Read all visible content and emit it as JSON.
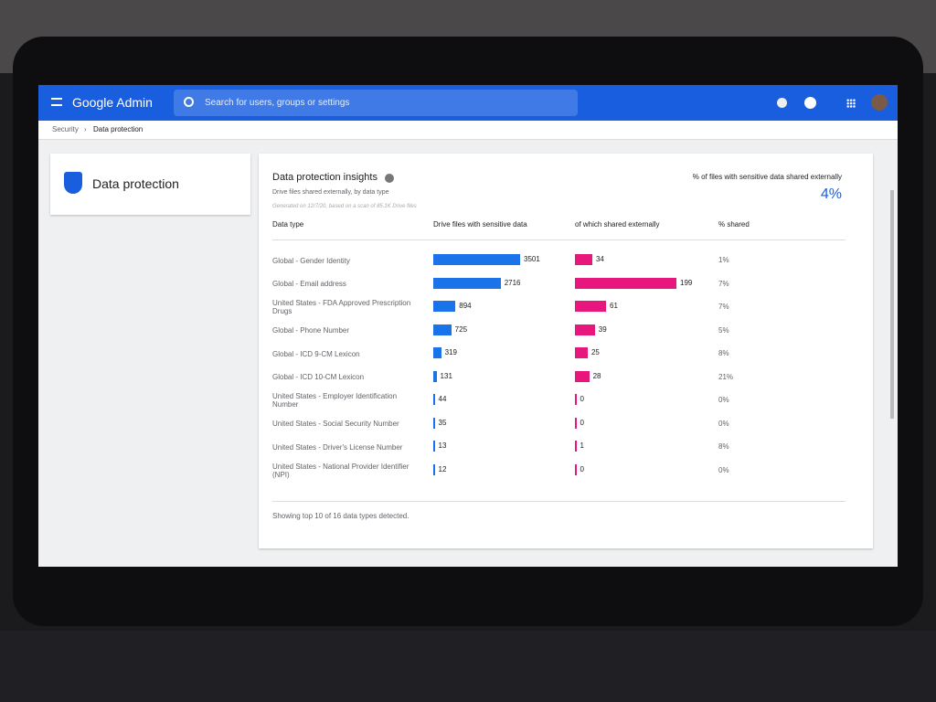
{
  "header": {
    "product": "Google Admin",
    "search_placeholder": "Search for users, groups or settings"
  },
  "breadcrumb": [
    "Security",
    "Data protection"
  ],
  "sidebar": {
    "title": "Data protection"
  },
  "card": {
    "title": "Data protection insights",
    "subtitle": "Drive files shared externally, by data type",
    "generated": "Generated on 12/7/20, based on a scan of 85.1K Drive files",
    "summary_label": "% of files with sensitive data shared externally",
    "summary_value": "4%",
    "columns": [
      "Data type",
      "Drive files with sensitive data",
      "of which shared externally",
      "% shared"
    ],
    "rows": [
      {
        "type": "Global - Gender Identity",
        "files": 3501,
        "shared": 34,
        "pct": "1%"
      },
      {
        "type": "Global - Email address",
        "files": 2716,
        "shared": 199,
        "pct": "7%"
      },
      {
        "type": "United States - FDA Approved Prescription Drugs",
        "files": 894,
        "shared": 61,
        "pct": "7%"
      },
      {
        "type": "Global - Phone Number",
        "files": 725,
        "shared": 39,
        "pct": "5%"
      },
      {
        "type": "Global - ICD 9-CM Lexicon",
        "files": 319,
        "shared": 25,
        "pct": "8%"
      },
      {
        "type": "Global - ICD 10-CM Lexicon",
        "files": 131,
        "shared": 28,
        "pct": "21%"
      },
      {
        "type": "United States - Employer Identification Number",
        "files": 44,
        "shared": 0,
        "pct": "0%"
      },
      {
        "type": "United States - Social Security Number",
        "files": 35,
        "shared": 0,
        "pct": "0%"
      },
      {
        "type": "United States - Driver's License Number",
        "files": 13,
        "shared": 1,
        "pct": "8%"
      },
      {
        "type": "United States - National Provider Identifier (NPI)",
        "files": 12,
        "shared": 0,
        "pct": "0%"
      }
    ],
    "footer": "Showing top 10 of 16 data types detected."
  }
}
